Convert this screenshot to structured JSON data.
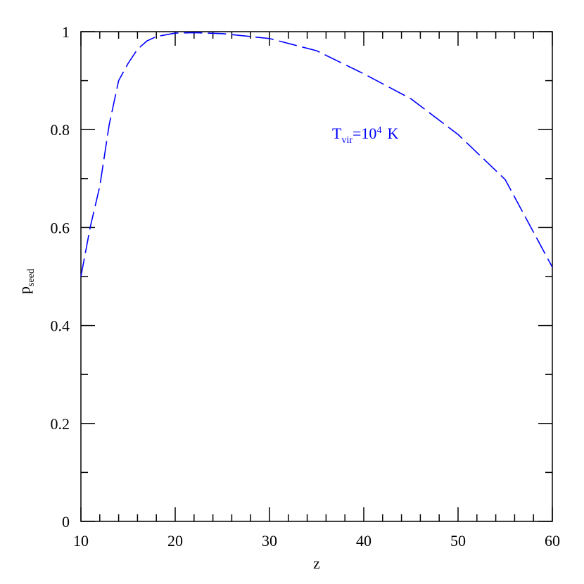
{
  "chart_data": {
    "type": "line",
    "xlabel": "z",
    "ylabel": [
      "p",
      "seed"
    ],
    "annotation": [
      "T",
      "vir",
      "=10",
      "4",
      "K"
    ],
    "x": [
      10,
      11,
      12,
      13,
      14,
      15,
      16,
      17,
      18,
      20,
      22,
      25,
      30,
      35,
      40,
      45,
      50,
      55,
      60
    ],
    "series": [
      {
        "name": "Tvir",
        "color": "#0000ff",
        "values": [
          0.5,
          0.602,
          0.684,
          0.81,
          0.9,
          0.935,
          0.964,
          0.981,
          0.99,
          0.997,
          0.998,
          0.996,
          0.986,
          0.961,
          0.914,
          0.863,
          0.79,
          0.698,
          0.519
        ]
      }
    ],
    "xlim": [
      10,
      60
    ],
    "ylim": [
      0,
      1
    ],
    "xticks": [
      10,
      20,
      30,
      40,
      50,
      60
    ],
    "yticks": [
      0,
      0.2,
      0.4,
      0.6,
      0.8,
      1
    ],
    "xminorticks": [
      12,
      14,
      16,
      18,
      22,
      24,
      26,
      28,
      32,
      34,
      36,
      38,
      42,
      44,
      46,
      48,
      52,
      54,
      56,
      58
    ],
    "yminorticks": [
      0.1,
      0.3,
      0.5,
      0.7,
      0.9
    ],
    "grid": false
  }
}
